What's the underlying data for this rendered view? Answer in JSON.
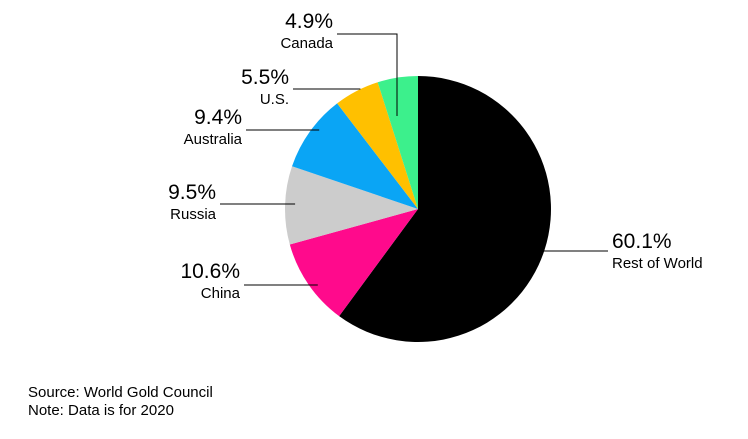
{
  "chart_data": {
    "type": "pie",
    "title": "",
    "slices": [
      {
        "label": "Rest of World",
        "value": 60.1,
        "value_label": "60.1%",
        "color": "#000000"
      },
      {
        "label": "China",
        "value": 10.6,
        "value_label": "10.6%",
        "color": "#ff0a8c"
      },
      {
        "label": "Russia",
        "value": 9.5,
        "value_label": "9.5%",
        "color": "#cccccc"
      },
      {
        "label": "Australia",
        "value": 9.4,
        "value_label": "9.4%",
        "color": "#0aa5f5"
      },
      {
        "label": "U.S.",
        "value": 5.5,
        "value_label": "5.5%",
        "color": "#ffc000"
      },
      {
        "label": "Canada",
        "value": 4.9,
        "value_label": "4.9%",
        "color": "#3cf08c"
      }
    ],
    "legend": "none"
  },
  "footer": {
    "source": "Source: World Gold Council",
    "note": "Note: Data is for 2020"
  }
}
